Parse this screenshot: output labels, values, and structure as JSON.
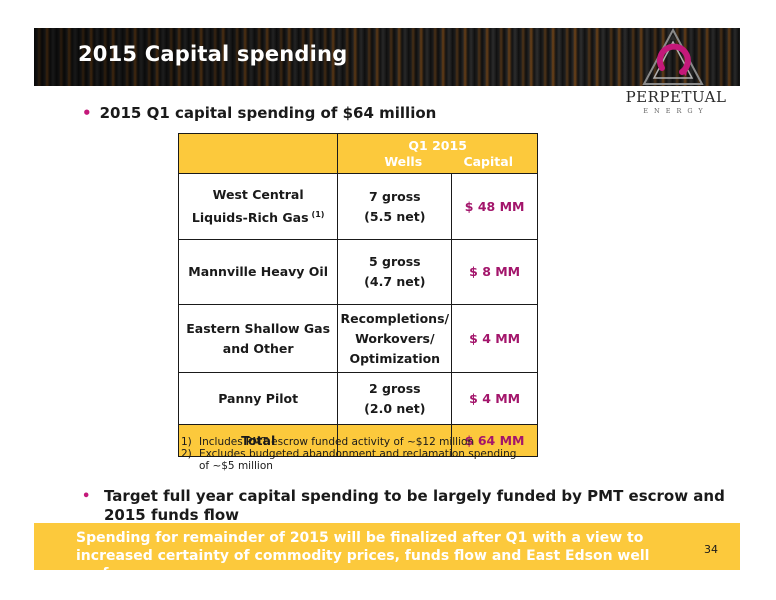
{
  "slide": {
    "title": "2015 Capital spending",
    "page_number": "34"
  },
  "logo": {
    "name": "PERPETUAL",
    "sub": "ENERGY"
  },
  "bullets": {
    "first": "2015 Q1 capital spending of $64 million",
    "second": "Target full year capital spending to be largely funded by PMT escrow and 2015 funds flow"
  },
  "table": {
    "header": {
      "group": "Q1 2015",
      "wells": "Wells",
      "capital": "Capital"
    },
    "rows": [
      {
        "area_line1": "West Central",
        "area_line2": "Liquids-Rich Gas",
        "footnote_ref": "(1)",
        "wells_line1": "7 gross",
        "wells_line2": "(5.5 net)",
        "capital": "$ 48 MM"
      },
      {
        "area_line1": "Mannville Heavy Oil",
        "area_line2": "",
        "footnote_ref": "",
        "wells_line1": "5 gross",
        "wells_line2": "(4.7 net)",
        "capital": "$ 8 MM"
      },
      {
        "area_line1": "Eastern Shallow Gas",
        "area_line2": "and Other",
        "footnote_ref": "",
        "wells_line1": "Recompletions/",
        "wells_line2": "Workovers/",
        "wells_line3": "Optimization",
        "capital": "$ 4 MM"
      },
      {
        "area_line1": "Panny Pilot",
        "area_line2": "",
        "footnote_ref": "",
        "wells_line1": "2 gross",
        "wells_line2": "(2.0 net)",
        "capital": "$ 4 MM"
      }
    ],
    "total": {
      "label": "Total",
      "wells": "",
      "capital": "$ 64 MM"
    }
  },
  "footnotes": [
    {
      "num": "1)",
      "text": "Includes PMT escrow funded activity of ~$12 million"
    },
    {
      "num": "2)",
      "text": "Excludes budgeted abandonment and reclamation spending of ~$5 million"
    }
  ],
  "callout": {
    "text": "Spending for remainder of 2015 will be finalized after Q1 with a view to increased certainty of commodity prices, funds flow and East Edson well performance"
  },
  "colors": {
    "accent_yellow": "#fcc93c",
    "capital_magenta": "#a3156b",
    "bullet_magenta": "#c4197a"
  }
}
